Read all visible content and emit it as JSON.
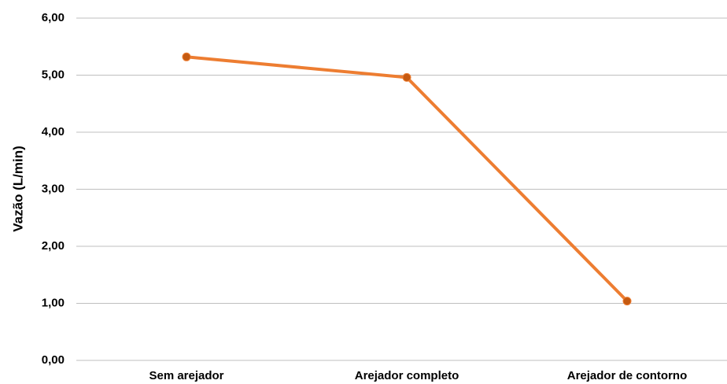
{
  "chart_data": {
    "type": "line",
    "y_label": "Vazão (L/min)",
    "categories": [
      "Sem arejador",
      "Arejador completo",
      "Arejador de contorno"
    ],
    "series": [
      {
        "name": "Vazão",
        "color": "#ed7d31",
        "marker_color": "#c55a11",
        "values": [
          5.32,
          4.96,
          1.04
        ]
      }
    ],
    "ylim": [
      0,
      6
    ],
    "yticks": [
      {
        "value": 0,
        "label": "0,00"
      },
      {
        "value": 1,
        "label": "1,00"
      },
      {
        "value": 2,
        "label": "2,00"
      },
      {
        "value": 3,
        "label": "3,00"
      },
      {
        "value": 4,
        "label": "4,00"
      },
      {
        "value": 5,
        "label": "5,00"
      },
      {
        "value": 6,
        "label": "6,00"
      }
    ],
    "grid": true,
    "legend": false
  }
}
